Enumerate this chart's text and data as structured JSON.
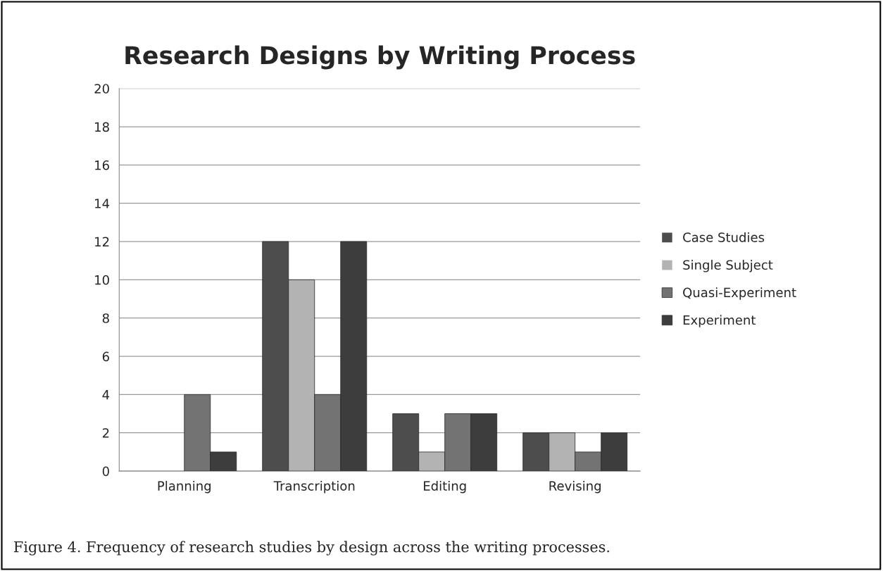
{
  "chart_data": {
    "type": "bar",
    "title": "Research Designs by Writing Process",
    "categories": [
      "Planning",
      "Transcription",
      "Editing",
      "Revising"
    ],
    "series": [
      {
        "name": "Case Studies",
        "color": "#4d4d4d",
        "values": [
          0,
          12,
          3,
          2
        ]
      },
      {
        "name": "Single Subject",
        "color": "#b3b3b3",
        "values": [
          0,
          10,
          1,
          2
        ]
      },
      {
        "name": "Quasi-Experiment",
        "color": "#737373",
        "values": [
          4,
          4,
          3,
          1
        ]
      },
      {
        "name": "Experiment",
        "color": "#3d3d3d",
        "values": [
          1,
          12,
          3,
          2
        ]
      }
    ],
    "ylim": [
      0,
      20
    ],
    "yticks": [
      0,
      2,
      4,
      6,
      8,
      10,
      12,
      14,
      16,
      18,
      20
    ],
    "grid": "y",
    "legend": "right",
    "annotations": [
      "Figure 4. Frequency of research studies by design across the writing processes."
    ]
  }
}
